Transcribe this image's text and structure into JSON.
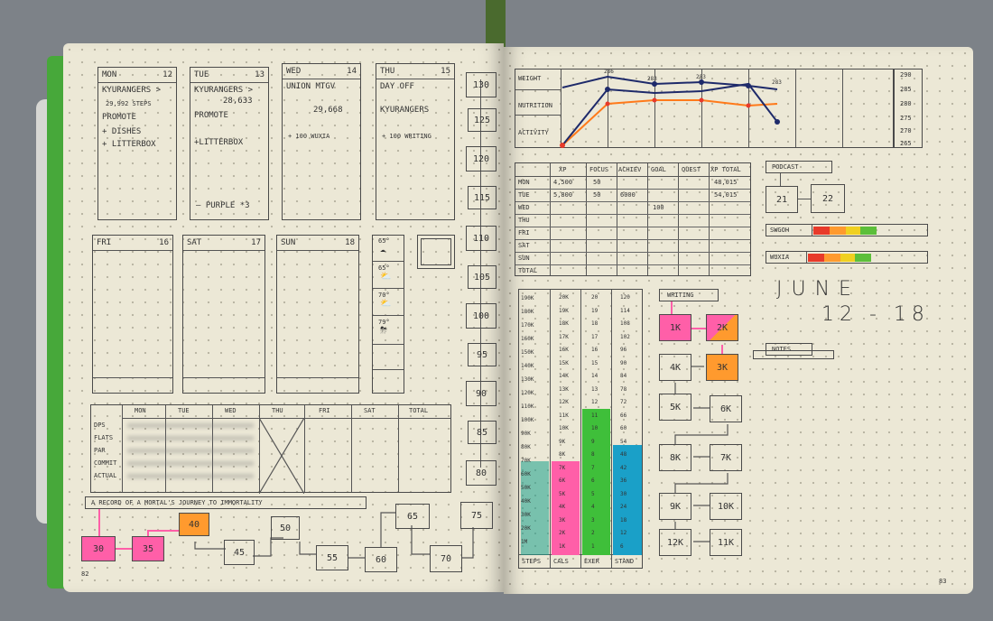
{
  "left_page": {
    "days_top": [
      {
        "label": "MON",
        "num": "12",
        "lines": [
          "KYURANGERS >",
          "29,992 STEPS",
          "PROMOTE",
          "+ DISHES",
          "+ LITTERBOX"
        ]
      },
      {
        "label": "TUE",
        "num": "13",
        "lines": [
          "KYURANGERS >",
          "28,633",
          "PROMOTE",
          "+LITTERBOX"
        ],
        "footer": "— PURPLE *3"
      },
      {
        "label": "WED",
        "num": "14",
        "lines": [
          "UNION MTGV",
          "29,668",
          "+ 100 WUXIA"
        ]
      },
      {
        "label": "THU",
        "num": "15",
        "lines": [
          "DAY OFF",
          "KYURANGERS",
          "+ 100 WRITING"
        ]
      }
    ],
    "days_bottom": [
      {
        "label": "FRI",
        "num": "16"
      },
      {
        "label": "SAT",
        "num": "17"
      },
      {
        "label": "SUN",
        "num": "18"
      }
    ],
    "weather": [
      "65°",
      "65°",
      "70°",
      "79°"
    ],
    "table_headers": [
      "MON",
      "TUE",
      "WED",
      "THU",
      "FRI",
      "SAT",
      "TOTAL"
    ],
    "table_rows": [
      "DPS",
      "FLATS",
      "PAR",
      "COMMIT",
      "ACTUAL"
    ],
    "journey_title": "A RECORD OF A MORTAL'S JOURNEY TO IMMORTALITY",
    "journey_steps": [
      "30",
      "35",
      "40",
      "45",
      "50",
      "55",
      "60",
      "65",
      "70",
      "75"
    ],
    "ladder": [
      "130",
      "125",
      "120",
      "115",
      "110",
      "105",
      "100",
      "95",
      "90",
      "85",
      "80"
    ],
    "page_number": "82"
  },
  "right_page": {
    "chart_labels": [
      "WEIGHT",
      "NUTRITION",
      "ACTIVITY"
    ],
    "chart_points": [
      "286",
      "283",
      "283",
      "283"
    ],
    "scale": [
      "290",
      "285",
      "280",
      "275",
      "270",
      "265"
    ],
    "xp_headers": [
      "XP",
      "FOCUS",
      "ACHIEV",
      "GOAL",
      "QUEST",
      "XP TOTAL"
    ],
    "xp_rows": [
      {
        "day": "MON",
        "xp": "4,500",
        "focus": "50",
        "achiev": "",
        "goal": "",
        "quest": "",
        "total": "48,015"
      },
      {
        "day": "TUE",
        "xp": "5,800",
        "focus": "50",
        "achiev": "6000",
        "goal": "",
        "quest": "",
        "total": "54,015"
      },
      {
        "day": "WED",
        "xp": "",
        "focus": "",
        "achiev": "",
        "goal": "100",
        "quest": "",
        "total": ""
      },
      {
        "day": "THU"
      },
      {
        "day": "FRI"
      },
      {
        "day": "SAT"
      },
      {
        "day": "SUN"
      },
      {
        "day": "TOTAL"
      }
    ],
    "podcast": {
      "label": "PODCAST",
      "values": [
        "21",
        "22"
      ]
    },
    "swgoh": "SWGOH",
    "wuxia": "WUXIA",
    "month": "JUNE",
    "range": "12 - 18",
    "notes": "NOTES",
    "writing": {
      "label": "WRITING",
      "steps": [
        "1K",
        "2K",
        "3K",
        "4K",
        "5K",
        "6K",
        "7K",
        "8K",
        "9K",
        "10K",
        "11K",
        "12K"
      ]
    },
    "bar_cols": [
      "STEPS",
      "CALS",
      "EXER",
      "STAND"
    ],
    "steps_scale": [
      "190K",
      "180K",
      "170K",
      "160K",
      "150K",
      "140K",
      "130K",
      "120K",
      "110K",
      "100K",
      "90K",
      "80K",
      "70K",
      "60K",
      "50K",
      "40K",
      "30K",
      "20K",
      "1M"
    ],
    "cals_scale": [
      "20K",
      "19K",
      "18K",
      "17K",
      "16K",
      "15K",
      "14K",
      "13K",
      "12K",
      "11K",
      "10K",
      "9K",
      "8K",
      "7K",
      "6K",
      "5K",
      "4K",
      "3K",
      "2K",
      "1K"
    ],
    "exer_scale": [
      "20",
      "19",
      "18",
      "17",
      "16",
      "15",
      "14",
      "13",
      "12",
      "11",
      "10",
      "9",
      "8",
      "7",
      "6",
      "5",
      "4",
      "3",
      "2",
      "1"
    ],
    "stand_scale": [
      "120",
      "114",
      "108",
      "102",
      "96",
      "90",
      "84",
      "78",
      "72",
      "66",
      "60",
      "54",
      "48",
      "42",
      "36",
      "30",
      "24",
      "18",
      "12",
      "6"
    ],
    "page_number": "83",
    "colors": {
      "pink": "#ff5fa8",
      "orange": "#ff9a2e",
      "green": "#3fbf3a",
      "teal": "#1aa0c8",
      "navy": "#1e2a6a",
      "red": "#e83a2a",
      "yellow": "#f0d020"
    }
  }
}
